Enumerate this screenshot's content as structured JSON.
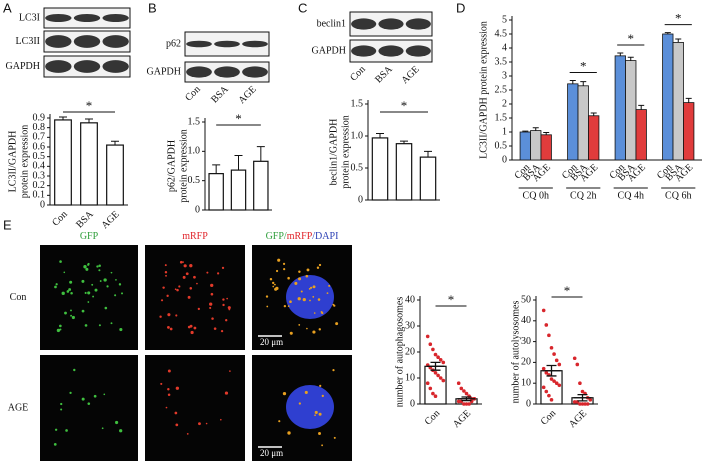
{
  "panels": [
    {
      "letter": "A",
      "blot_labels": [
        "LC3I",
        "LC3II",
        "GAPDH"
      ]
    },
    {
      "letter": "B",
      "blot_labels": [
        "p62",
        "GAPDH"
      ]
    },
    {
      "letter": "C",
      "blot_labels": [
        "beclin1",
        "GAPDH"
      ]
    },
    {
      "letter": "D"
    },
    {
      "letter": "E"
    }
  ],
  "microscopy": {
    "columns": [
      [
        {
          "text": "GFP",
          "color": "#2e9e3a"
        }
      ],
      [
        {
          "text": "mRFP",
          "color": "#e0242a"
        }
      ],
      [
        {
          "text": "GFP/",
          "color": "#2e9e3a"
        },
        {
          "text": "mRFP",
          "color": "#e0242a"
        },
        {
          "text": "/DAPI",
          "color": "#2b3fb5"
        }
      ]
    ],
    "rows": [
      "Con",
      "AGE"
    ],
    "scale_bar": "20 μm"
  },
  "chart_data": [
    {
      "type": "bar",
      "ylabel": [
        "LC3II/GAPDH",
        "protein expression"
      ],
      "categories": [
        "Con",
        "BSA",
        "AGE"
      ],
      "values": [
        0.88,
        0.85,
        0.62
      ],
      "errors": [
        0.03,
        0.04,
        0.04
      ],
      "color": "#ffffff",
      "ylim": [
        0,
        0.9
      ],
      "yticks": [
        0,
        0.1,
        0.2,
        0.3,
        0.4,
        0.5,
        0.6,
        0.7,
        0.8,
        0.9
      ],
      "annotation": "*"
    },
    {
      "type": "bar",
      "ylabel": [
        "p62/GAPDH",
        "protein expression"
      ],
      "categories": [
        "Con",
        "BSA",
        "AGE"
      ],
      "values": [
        0.62,
        0.68,
        0.83
      ],
      "errors": [
        0.15,
        0.25,
        0.25
      ],
      "color": "#ffffff",
      "ylim": [
        0,
        1.5
      ],
      "yticks": [
        0,
        0.5,
        {
          "value": 1,
          "label": "1.0"
        },
        1.5
      ],
      "annotation": "*"
    },
    {
      "type": "bar",
      "ylabel": [
        "beclin1/GAPDH",
        "protein expression"
      ],
      "categories": [
        "Con",
        "BSA",
        "AGE"
      ],
      "values": [
        0.97,
        0.88,
        0.67
      ],
      "errors": [
        0.07,
        0.04,
        0.09
      ],
      "color": "#ffffff",
      "ylim": [
        0,
        1.5
      ],
      "yticks": [
        0,
        0.5,
        {
          "value": 1,
          "label": "1.0"
        },
        1.5
      ],
      "annotation": "*"
    },
    {
      "type": "grouped_bar",
      "ylabel": "LC3II/GAPDH protein expression",
      "categories": [
        "CQ 0h",
        "CQ 2h",
        "CQ 4h",
        "CQ 6h"
      ],
      "series": [
        {
          "name": "Con",
          "color": "#5b8fd9",
          "values": [
            1.0,
            2.72,
            3.72,
            4.5
          ],
          "errors": [
            0.03,
            0.12,
            0.1,
            0.05
          ]
        },
        {
          "name": "BSA",
          "color": "#c8c8c8",
          "values": [
            1.05,
            2.65,
            3.55,
            4.2
          ],
          "errors": [
            0.1,
            0.15,
            0.12,
            0.12
          ]
        },
        {
          "name": "AGE",
          "color": "#e03c3c",
          "values": [
            0.9,
            1.58,
            1.8,
            2.05
          ],
          "errors": [
            0.08,
            0.1,
            0.15,
            0.15
          ]
        }
      ],
      "ylim": [
        0,
        5
      ],
      "yticks": [
        0,
        0.5,
        1,
        1.5,
        2,
        2.5,
        3,
        3.5,
        4,
        4.5,
        5
      ],
      "group_annotations": [
        null,
        "*",
        "*",
        "*"
      ]
    },
    {
      "type": "dot_bar",
      "ylabel": "number of autophagosomes",
      "categories": [
        "Con",
        "AGE"
      ],
      "means": [
        14.5,
        2
      ],
      "errors": [
        1.5,
        0.7
      ],
      "color": "#d8262c",
      "points": [
        [
          26,
          23,
          21,
          19,
          18,
          17,
          16,
          15,
          14,
          13,
          12,
          11,
          10,
          9,
          8,
          6,
          4,
          3
        ],
        [
          8,
          6,
          5,
          4,
          3,
          2,
          2,
          1,
          1,
          0,
          0,
          0,
          1,
          2
        ]
      ],
      "ylim": [
        0,
        40
      ],
      "yticks": [
        0,
        10,
        20,
        30,
        40
      ],
      "annotation": "*"
    },
    {
      "type": "dot_bar",
      "ylabel": "number of autolysosomes",
      "categories": [
        "Con",
        "AGE"
      ],
      "means": [
        16,
        3
      ],
      "errors": [
        2.5,
        1.5
      ],
      "color": "#d8262c",
      "points": [
        [
          45,
          38,
          33,
          27,
          24,
          21,
          19,
          17,
          15,
          14,
          12,
          11,
          10,
          9,
          8,
          6,
          4,
          2
        ],
        [
          22,
          19,
          10,
          6,
          5,
          3,
          2,
          1,
          1,
          0,
          0,
          0,
          0
        ]
      ],
      "ylim": [
        0,
        50
      ],
      "yticks": [
        0,
        10,
        20,
        30,
        40,
        50
      ],
      "annotation": "*"
    }
  ]
}
